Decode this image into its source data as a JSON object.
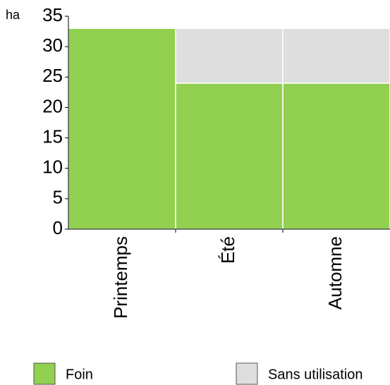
{
  "chart_data": {
    "type": "stacked_bar",
    "y_label": "ha",
    "categories": [
      "Printemps",
      "Été",
      "Automne"
    ],
    "series": [
      {
        "name": "Foin",
        "color": "#92d050",
        "values": [
          33,
          24,
          24
        ]
      },
      {
        "name": "Sans utilisation",
        "color": "#dedede",
        "values": [
          0,
          9,
          9
        ]
      }
    ],
    "ylim": [
      0,
      35
    ],
    "yticks": [
      0,
      5,
      10,
      15,
      20,
      25,
      30,
      35
    ]
  }
}
